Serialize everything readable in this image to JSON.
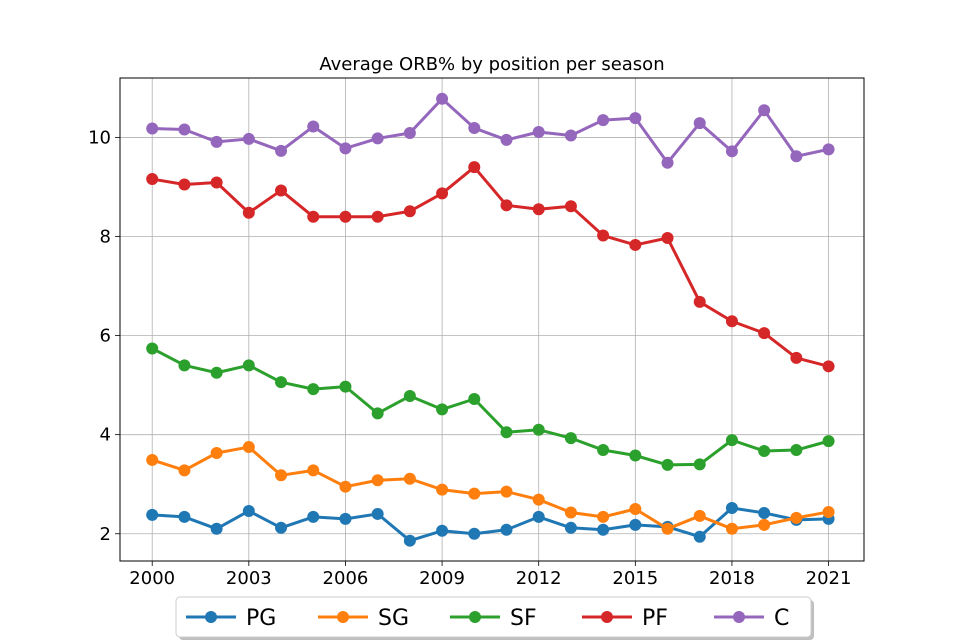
{
  "chart_data": {
    "type": "line",
    "title": "Average ORB% by position per season",
    "xlabel": "",
    "ylabel": "",
    "x": [
      2000,
      2001,
      2002,
      2003,
      2004,
      2005,
      2006,
      2007,
      2008,
      2009,
      2010,
      2011,
      2012,
      2013,
      2014,
      2015,
      2016,
      2017,
      2018,
      2019,
      2020,
      2021
    ],
    "xticks": [
      "2000",
      "2003",
      "2006",
      "2009",
      "2012",
      "2015",
      "2018",
      "2021"
    ],
    "yticks": [
      "2",
      "4",
      "6",
      "8",
      "10"
    ],
    "xlim": [
      1999,
      2022.1
    ],
    "ylim": [
      1.45,
      11.2
    ],
    "grid": true,
    "legend_position": "bottom-center",
    "series": [
      {
        "name": "PG",
        "color": "#1f77b4",
        "values": [
          2.38,
          2.34,
          2.1,
          2.46,
          2.12,
          2.34,
          2.3,
          2.4,
          1.86,
          2.06,
          2.0,
          2.08,
          2.34,
          2.12,
          2.08,
          2.18,
          2.14,
          1.94,
          2.52,
          2.42,
          2.28,
          2.3
        ]
      },
      {
        "name": "SG",
        "color": "#ff7f0e",
        "values": [
          3.49,
          3.28,
          3.63,
          3.75,
          3.18,
          3.28,
          2.95,
          3.08,
          3.11,
          2.89,
          2.81,
          2.85,
          2.69,
          2.43,
          2.34,
          2.5,
          2.1,
          2.36,
          2.1,
          2.18,
          2.32,
          2.44
        ]
      },
      {
        "name": "SF",
        "color": "#2ca02c",
        "values": [
          5.74,
          5.4,
          5.25,
          5.4,
          5.06,
          4.92,
          4.97,
          4.43,
          4.78,
          4.51,
          4.72,
          4.05,
          4.1,
          3.93,
          3.69,
          3.58,
          3.39,
          3.4,
          3.89,
          3.67,
          3.69,
          3.87
        ]
      },
      {
        "name": "PF",
        "color": "#d62728",
        "values": [
          9.16,
          9.05,
          9.09,
          8.48,
          8.93,
          8.4,
          8.4,
          8.4,
          8.51,
          8.87,
          9.4,
          8.63,
          8.55,
          8.61,
          8.02,
          7.83,
          7.97,
          6.68,
          6.29,
          6.05,
          5.55,
          5.38
        ]
      },
      {
        "name": "C",
        "color": "#9467bd",
        "values": [
          10.18,
          10.16,
          9.91,
          9.97,
          9.73,
          10.22,
          9.78,
          9.98,
          10.09,
          10.78,
          10.19,
          9.95,
          10.11,
          10.04,
          10.35,
          10.39,
          9.49,
          10.29,
          9.72,
          10.55,
          9.62,
          9.76
        ]
      }
    ]
  }
}
